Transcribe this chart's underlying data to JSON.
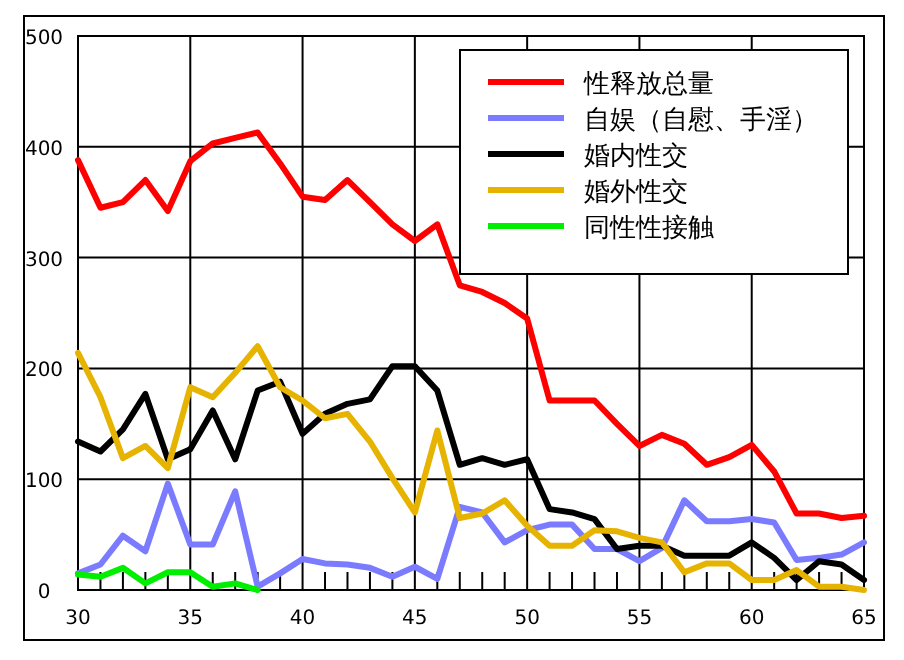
{
  "chart_data": {
    "type": "line",
    "x": [
      30,
      31,
      32,
      33,
      34,
      35,
      36,
      37,
      38,
      39,
      40,
      41,
      42,
      43,
      44,
      45,
      46,
      47,
      48,
      49,
      50,
      51,
      52,
      53,
      54,
      55,
      56,
      57,
      58,
      59,
      60,
      61,
      62,
      63,
      64,
      65
    ],
    "series": [
      {
        "name": "性释放总量",
        "color": "#ff0000",
        "values": [
          388,
          345,
          350,
          370,
          342,
          387,
          403,
          408,
          413,
          385,
          355,
          352,
          370,
          350,
          330,
          315,
          330,
          275,
          269,
          259,
          245,
          171,
          171,
          171,
          150,
          130,
          140,
          132,
          113,
          120,
          131,
          107,
          69,
          69,
          65,
          67
        ]
      },
      {
        "name": "自娱（自慰、手淫）",
        "color": "#7b7bff",
        "values": [
          15,
          23,
          49,
          35,
          96,
          41,
          41,
          89,
          3,
          15,
          28,
          24,
          23,
          20,
          12,
          21,
          10,
          75,
          70,
          43,
          54,
          59,
          59,
          37,
          37,
          26,
          38,
          81,
          62,
          62,
          64,
          61,
          27,
          29,
          32,
          43
        ]
      },
      {
        "name": "婚内性交",
        "color": "#000000",
        "values": [
          134,
          125,
          145,
          177,
          118,
          127,
          162,
          118,
          180,
          188,
          141,
          159,
          168,
          172,
          202,
          202,
          180,
          113,
          119,
          113,
          118,
          73,
          70,
          64,
          37,
          40,
          40,
          31,
          31,
          31,
          43,
          29,
          9,
          26,
          23,
          9
        ]
      },
      {
        "name": "婚外性交",
        "color": "#e6b400",
        "values": [
          214,
          174,
          119,
          130,
          110,
          183,
          174,
          196,
          220,
          183,
          171,
          155,
          159,
          134,
          101,
          70,
          144,
          65,
          69,
          81,
          58,
          40,
          40,
          54,
          53,
          47,
          43,
          16,
          24,
          24,
          9,
          9,
          18,
          3,
          3,
          0
        ]
      },
      {
        "name": "同性性接触",
        "color": "#00ee00",
        "values": [
          14,
          12,
          20,
          6,
          16,
          16,
          3,
          6,
          0,
          null,
          null,
          null,
          null,
          null,
          null,
          null,
          null,
          null,
          null,
          null,
          null,
          null,
          null,
          null,
          null,
          null,
          null,
          null,
          null,
          null,
          null,
          null,
          null,
          null,
          null,
          null
        ]
      }
    ],
    "xlim": [
      30,
      65
    ],
    "ylim": [
      0,
      500
    ],
    "xticks": [
      30,
      {
        "value": 31,
        "label": null
      },
      {
        "value": 32,
        "label": null
      },
      {
        "value": 33,
        "label": null
      },
      {
        "value": 34,
        "label": null
      },
      35,
      {
        "value": 36,
        "label": null
      },
      {
        "value": 37,
        "label": null
      },
      {
        "value": 38,
        "label": null
      },
      {
        "value": 39,
        "label": null
      },
      40,
      {
        "value": 41,
        "label": null
      },
      {
        "value": 42,
        "label": null
      },
      {
        "value": 43,
        "label": null
      },
      {
        "value": 44,
        "label": null
      },
      45,
      {
        "value": 46,
        "label": null
      },
      {
        "value": 47,
        "label": null
      },
      {
        "value": 48,
        "label": null
      },
      {
        "value": 49,
        "label": null
      },
      50,
      {
        "value": 51,
        "label": null
      },
      {
        "value": 52,
        "label": null
      },
      {
        "value": 53,
        "label": null
      },
      {
        "value": 54,
        "label": null
      },
      55,
      {
        "value": 56,
        "label": null
      },
      {
        "value": 57,
        "label": null
      },
      {
        "value": 58,
        "label": null
      },
      {
        "value": 59,
        "label": null
      },
      60,
      {
        "value": 61,
        "label": null
      },
      {
        "value": 62,
        "label": null
      },
      {
        "value": 63,
        "label": null
      },
      {
        "value": 64,
        "label": null
      },
      65
    ],
    "yticks": [
      0,
      100,
      200,
      300,
      400,
      500
    ],
    "grid": true,
    "legend": "top right",
    "marker": "none",
    "line_style": "solid"
  }
}
